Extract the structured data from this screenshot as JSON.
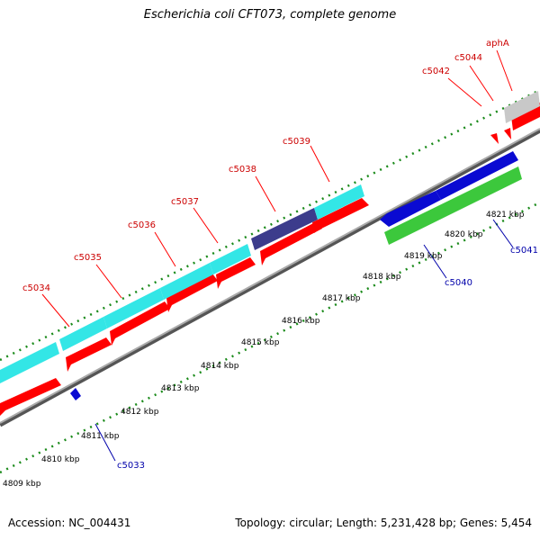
{
  "title": "Escherichia coli CFT073, complete genome",
  "footer": {
    "accession": "Accession: NC_004431",
    "stats": "Topology: circular; Length: 5,231,428 bp; Genes: 5,454"
  },
  "scale": [
    "4809 kbp",
    "4810 kbp",
    "4811 kbp",
    "4812 kbp",
    "4813 kbp",
    "4814 kbp",
    "4815 kbp",
    "4816 kbp",
    "4817 kbp",
    "4818 kbp",
    "4819 kbp",
    "4820 kbp",
    "4821 kbp"
  ],
  "genes": {
    "c5033": "c5033",
    "c5034": "c5034",
    "c5035": "c5035",
    "c5036": "c5036",
    "c5037": "c5037",
    "c5038": "c5038",
    "c5039": "c5039",
    "c5040": "c5040",
    "c5041": "c5041",
    "c5042": "c5042",
    "c5044": "c5044",
    "aphA": "aphA"
  },
  "colors": {
    "cds_forward": "#ff0000",
    "cyan_feature": "#33e6e6",
    "purple_feature": "#3c3c8c",
    "blue_feature": "#0a0ad2",
    "green_feature": "#3cc83c",
    "grey_feature": "#c8c8c8",
    "backbone": "#888888",
    "tick": "#1a8a1a",
    "label_forward": "#cc0000",
    "label_reverse": "#0000aa"
  }
}
